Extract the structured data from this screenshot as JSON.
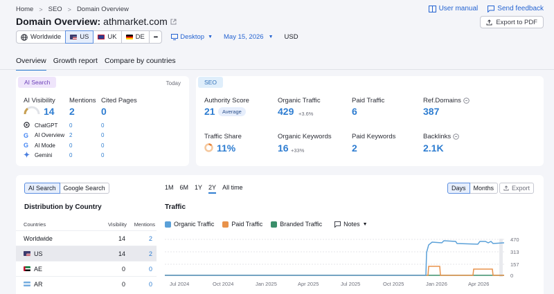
{
  "breadcrumb": [
    "Home",
    "SEO",
    "Domain Overview"
  ],
  "top_links": {
    "user_manual": "User manual",
    "feedback": "Send feedback"
  },
  "title": {
    "prefix": "Domain Overview:",
    "domain": "athmarket.com"
  },
  "export_pdf": "Export to PDF",
  "filters": {
    "worldwide": "Worldwide",
    "countries": [
      "US",
      "UK",
      "DE"
    ],
    "more": "•••",
    "device": "Desktop",
    "date": "May 15, 2026",
    "currency": "USD"
  },
  "tabs": [
    "Overview",
    "Growth report",
    "Compare by countries"
  ],
  "ai_card": {
    "badge": "AI Search",
    "today": "Today",
    "headers": {
      "visibility": "AI Visibility",
      "mentions": "Mentions",
      "cited": "Cited Pages"
    },
    "totals": {
      "visibility": "14",
      "mentions": "2",
      "cited": "0"
    },
    "engines": [
      {
        "name": "ChatGPT",
        "mentions": "0",
        "cited": "0"
      },
      {
        "name": "AI Overview",
        "mentions": "2",
        "cited": "0"
      },
      {
        "name": "AI Mode",
        "mentions": "0",
        "cited": "0"
      },
      {
        "name": "Gemini",
        "mentions": "0",
        "cited": "0"
      }
    ]
  },
  "seo_card": {
    "badge": "SEO",
    "authority": {
      "label": "Authority Score",
      "value": "21",
      "tag": "Average"
    },
    "organic_traffic": {
      "label": "Organic Traffic",
      "value": "429",
      "delta": "+3.6%"
    },
    "paid_traffic": {
      "label": "Paid Traffic",
      "value": "6"
    },
    "ref_domains": {
      "label": "Ref.Domains",
      "value": "387"
    },
    "traffic_share": {
      "label": "Traffic Share",
      "value": "11%"
    },
    "organic_keywords": {
      "label": "Organic Keywords",
      "value": "16",
      "delta": "+33%"
    },
    "paid_keywords": {
      "label": "Paid Keywords",
      "value": "2"
    },
    "backlinks": {
      "label": "Backlinks",
      "value": "2.1K"
    }
  },
  "distribution": {
    "toggle": [
      "AI Search",
      "Google Search"
    ],
    "title": "Distribution by Country",
    "columns": [
      "Countries",
      "Visibility",
      "Mentions"
    ],
    "rows": [
      {
        "country": "Worldwide",
        "visibility": "14",
        "mentions": "2"
      },
      {
        "country": "US",
        "visibility": "14",
        "mentions": "2"
      },
      {
        "country": "AE",
        "visibility": "0",
        "mentions": "0"
      },
      {
        "country": "AR",
        "visibility": "0",
        "mentions": "0"
      }
    ]
  },
  "traffic": {
    "ranges": [
      "1M",
      "6M",
      "1Y",
      "2Y",
      "All time"
    ],
    "active_range": "2Y",
    "period": [
      "Days",
      "Months"
    ],
    "export": "Export",
    "title": "Traffic",
    "legend": [
      {
        "name": "Organic Traffic",
        "color": "#5aa0d8",
        "checked": true
      },
      {
        "name": "Paid Traffic",
        "color": "#e8924a",
        "checked": true
      },
      {
        "name": "Branded Traffic",
        "color": "#3a8e6a",
        "checked": true
      }
    ],
    "notes": "Notes",
    "y_ticks": [
      "470",
      "313",
      "157",
      "0"
    ],
    "x_ticks": [
      "Jul 2024",
      "Oct 2024",
      "Jan 2025",
      "Apr 2025",
      "Jul 2025",
      "Oct 2025",
      "Jan 2026",
      "Apr 2026"
    ]
  }
}
